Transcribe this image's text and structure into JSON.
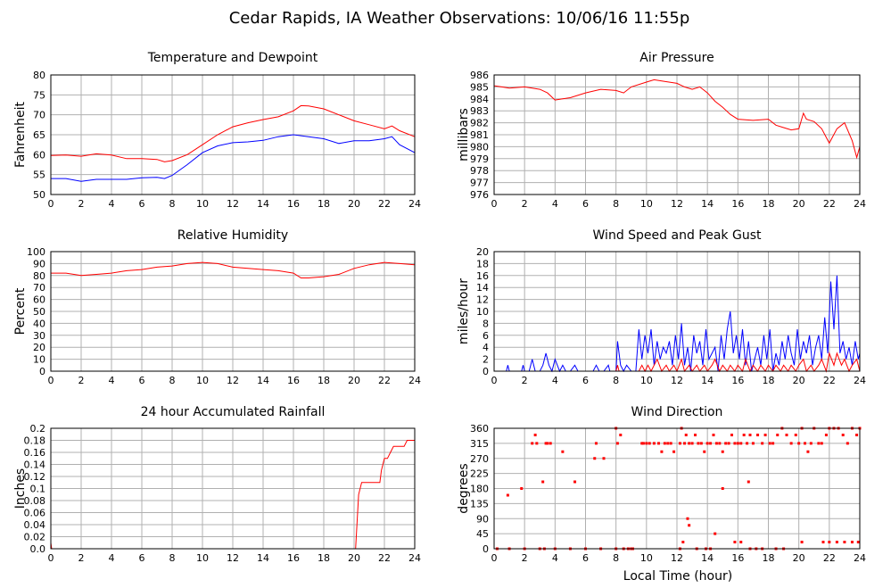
{
  "page_title": "Cedar Rapids, IA Weather Observations: 10/06/16 11:55p",
  "bottom_xlabel": "Local Time (hour)",
  "colors": {
    "red": "#ff0000",
    "blue": "#0000ff",
    "grid": "#b0b0b0",
    "axis": "#000000"
  },
  "chart_data": [
    {
      "id": "temp",
      "type": "line",
      "title": "Temperature and Dewpoint",
      "xlabel": "",
      "ylabel": "Fahrenheit",
      "xlim": [
        0,
        24
      ],
      "ylim": [
        50,
        80
      ],
      "xticks": [
        0,
        2,
        4,
        6,
        8,
        10,
        12,
        14,
        16,
        18,
        20,
        22,
        24
      ],
      "yticks": [
        50,
        55,
        60,
        65,
        70,
        75,
        80
      ],
      "grid": true,
      "series": [
        {
          "color": "#ff0000",
          "x": [
            0,
            1,
            2,
            3,
            4,
            5,
            6,
            7,
            7.5,
            8,
            9,
            10,
            11,
            12,
            13,
            14,
            15,
            16,
            16.5,
            17,
            18,
            19,
            20,
            21,
            22,
            22.5,
            23,
            24
          ],
          "y": [
            59.8,
            59.9,
            59.6,
            60.2,
            59.9,
            59.0,
            59.0,
            58.8,
            58.2,
            58.5,
            60.0,
            62.5,
            65.0,
            67.0,
            68.0,
            68.8,
            69.5,
            71.0,
            72.3,
            72.2,
            71.5,
            70.0,
            68.5,
            67.5,
            66.5,
            67.2,
            66.0,
            64.5
          ]
        },
        {
          "color": "#0000ff",
          "x": [
            0,
            1,
            2,
            3,
            4,
            5,
            6,
            7,
            7.5,
            8,
            9,
            10,
            11,
            12,
            13,
            14,
            15,
            16,
            17,
            18,
            19,
            20,
            21,
            22,
            22.5,
            23,
            24
          ],
          "y": [
            54.0,
            54.0,
            53.3,
            53.8,
            53.8,
            53.8,
            54.2,
            54.3,
            54.0,
            54.8,
            57.5,
            60.5,
            62.2,
            63.0,
            63.2,
            63.6,
            64.5,
            65.0,
            64.5,
            64.0,
            62.8,
            63.5,
            63.5,
            64.0,
            64.5,
            62.5,
            60.5
          ]
        }
      ]
    },
    {
      "id": "pressure",
      "type": "line",
      "title": "Air Pressure",
      "xlabel": "",
      "ylabel": "millibars",
      "xlim": [
        0,
        24
      ],
      "ylim": [
        976,
        986
      ],
      "xticks": [
        0,
        2,
        4,
        6,
        8,
        10,
        12,
        14,
        16,
        18,
        20,
        22,
        24
      ],
      "yticks": [
        976,
        977,
        978,
        979,
        980,
        981,
        982,
        983,
        984,
        985,
        986
      ],
      "grid": true,
      "series": [
        {
          "color": "#ff0000",
          "x": [
            0,
            0.5,
            1,
            2,
            3,
            3.5,
            4,
            4.5,
            5,
            6,
            7,
            8,
            8.5,
            9,
            10,
            10.5,
            11,
            12,
            12.5,
            13,
            13.5,
            14,
            14.5,
            15,
            15.5,
            16,
            17,
            18,
            18.5,
            19,
            19.5,
            20,
            20.3,
            20.5,
            21,
            21.5,
            22,
            22.5,
            23,
            23.5,
            23.8,
            24
          ],
          "y": [
            985.1,
            985.0,
            984.9,
            985.0,
            984.8,
            984.5,
            983.9,
            984.0,
            984.1,
            984.5,
            984.8,
            984.7,
            984.5,
            985.0,
            985.4,
            985.6,
            985.5,
            985.3,
            985.0,
            984.8,
            985.0,
            984.5,
            983.8,
            983.3,
            982.7,
            982.3,
            982.2,
            982.3,
            981.8,
            981.6,
            981.4,
            981.5,
            982.8,
            982.3,
            982.1,
            981.5,
            980.3,
            981.5,
            982.0,
            980.5,
            979.1,
            980.0
          ]
        }
      ]
    },
    {
      "id": "humidity",
      "type": "line",
      "title": "Relative Humidity",
      "xlabel": "",
      "ylabel": "Percent",
      "xlim": [
        0,
        24
      ],
      "ylim": [
        0,
        100
      ],
      "xticks": [
        0,
        2,
        4,
        6,
        8,
        10,
        12,
        14,
        16,
        18,
        20,
        22,
        24
      ],
      "yticks": [
        0,
        10,
        20,
        30,
        40,
        50,
        60,
        70,
        80,
        90,
        100
      ],
      "grid": true,
      "series": [
        {
          "color": "#ff0000",
          "x": [
            0,
            1,
            2,
            3,
            4,
            5,
            6,
            7,
            8,
            9,
            10,
            11,
            12,
            13,
            14,
            15,
            16,
            16.5,
            17,
            18,
            19,
            20,
            21,
            22,
            23,
            24
          ],
          "y": [
            82,
            82,
            80,
            81,
            82,
            84,
            85,
            87,
            88,
            90,
            91,
            90,
            87,
            86,
            85,
            84,
            82,
            78,
            78,
            79,
            81,
            86,
            89,
            91,
            90,
            89
          ]
        }
      ]
    },
    {
      "id": "wind",
      "type": "line",
      "title": "Wind Speed and Peak Gust",
      "xlabel": "",
      "ylabel": "miles/hour",
      "xlim": [
        0,
        24
      ],
      "ylim": [
        0,
        20
      ],
      "xticks": [
        0,
        2,
        4,
        6,
        8,
        10,
        12,
        14,
        16,
        18,
        20,
        22,
        24
      ],
      "yticks": [
        0,
        2,
        4,
        6,
        8,
        10,
        12,
        14,
        16,
        18,
        20
      ],
      "grid": true,
      "series": [
        {
          "color": "#0000ff",
          "x": [
            0,
            0.8,
            0.9,
            1.0,
            1.8,
            1.9,
            2.0,
            2.3,
            2.5,
            2.7,
            3.0,
            3.2,
            3.4,
            3.6,
            3.8,
            4.0,
            4.3,
            4.5,
            4.7,
            5.0,
            5.3,
            5.5,
            5.7,
            6.0,
            6.5,
            6.7,
            6.9,
            7.2,
            7.5,
            7.6,
            7.8,
            8.0,
            8.1,
            8.3,
            8.5,
            8.7,
            9.0,
            9.3,
            9.5,
            9.7,
            9.9,
            10.1,
            10.3,
            10.5,
            10.7,
            10.9,
            11.1,
            11.3,
            11.5,
            11.7,
            11.9,
            12.1,
            12.3,
            12.5,
            12.7,
            12.9,
            13.1,
            13.3,
            13.5,
            13.7,
            13.9,
            14.1,
            14.3,
            14.5,
            14.7,
            14.9,
            15.1,
            15.3,
            15.5,
            15.7,
            15.9,
            16.1,
            16.3,
            16.5,
            16.7,
            16.9,
            17.1,
            17.3,
            17.5,
            17.7,
            17.9,
            18.1,
            18.3,
            18.5,
            18.7,
            18.9,
            19.1,
            19.3,
            19.5,
            19.7,
            19.9,
            20.1,
            20.3,
            20.5,
            20.7,
            20.9,
            21.1,
            21.3,
            21.5,
            21.7,
            21.9,
            22.1,
            22.3,
            22.5,
            22.7,
            22.9,
            23.1,
            23.3,
            23.5,
            23.7,
            23.9,
            24
          ],
          "y": [
            0,
            0,
            1,
            0,
            0,
            1,
            0,
            0,
            2,
            0,
            0,
            1,
            3,
            1,
            0,
            2,
            0,
            1,
            0,
            0,
            1,
            0,
            0,
            0,
            0,
            1,
            0,
            0,
            1,
            0,
            0,
            0,
            5,
            1,
            0,
            1,
            0,
            0,
            7,
            2,
            6,
            3,
            7,
            1,
            5,
            2,
            4,
            3,
            5,
            1,
            6,
            2,
            8,
            1,
            4,
            0,
            6,
            3,
            5,
            1,
            7,
            2,
            3,
            4,
            0,
            6,
            2,
            7,
            10,
            3,
            6,
            2,
            7,
            1,
            5,
            0,
            2,
            4,
            1,
            6,
            2,
            7,
            0,
            3,
            1,
            5,
            2,
            6,
            3,
            1,
            7,
            2,
            5,
            3,
            6,
            1,
            4,
            6,
            2,
            9,
            3,
            15,
            7,
            16,
            3,
            5,
            2,
            4,
            1,
            5,
            2,
            3
          ]
        },
        {
          "color": "#ff0000",
          "x": [
            0,
            8.0,
            8.1,
            8.2,
            9.5,
            9.7,
            9.9,
            10.1,
            10.3,
            10.5,
            10.7,
            11.0,
            11.3,
            11.5,
            11.8,
            12.0,
            12.3,
            12.5,
            12.8,
            13.0,
            13.3,
            13.5,
            13.8,
            14.0,
            14.3,
            14.5,
            14.8,
            15.0,
            15.3,
            15.5,
            15.8,
            16.0,
            16.3,
            16.5,
            16.8,
            17.0,
            17.3,
            17.5,
            17.8,
            18.0,
            18.3,
            18.5,
            18.8,
            19.0,
            19.3,
            19.5,
            19.8,
            20.0,
            20.3,
            20.5,
            20.8,
            21.0,
            21.3,
            21.5,
            21.8,
            22.0,
            22.3,
            22.5,
            22.8,
            23.0,
            23.3,
            23.5,
            23.8,
            24
          ],
          "y": [
            0,
            0,
            1,
            0,
            0,
            1,
            0,
            1,
            0,
            1,
            2,
            0,
            1,
            0,
            1,
            0,
            2,
            0,
            1,
            0,
            1,
            0,
            1,
            0,
            1,
            2,
            0,
            1,
            0,
            1,
            0,
            1,
            0,
            2,
            0,
            1,
            0,
            1,
            0,
            1,
            0,
            1,
            0,
            1,
            0,
            1,
            0,
            1,
            2,
            0,
            1,
            0,
            1,
            2,
            0,
            3,
            1,
            3,
            1,
            2,
            0,
            1,
            2,
            0
          ]
        }
      ]
    },
    {
      "id": "rain",
      "type": "line",
      "title": "24 hour Accumulated Rainfall",
      "xlabel": "",
      "ylabel": "Inches",
      "xlim": [
        0,
        24
      ],
      "ylim": [
        0,
        0.2
      ],
      "xticks": [
        0,
        2,
        4,
        6,
        8,
        10,
        12,
        14,
        16,
        18,
        20,
        22,
        24
      ],
      "yticks": [
        0.0,
        0.02,
        0.04,
        0.06,
        0.08,
        0.1,
        0.12,
        0.14,
        0.16,
        0.18,
        0.2
      ],
      "ytick_labels": [
        "0.0",
        "0.02",
        "0.04",
        "0.06",
        "0.08",
        "0.1",
        "0.12",
        "0.14",
        "0.16",
        "0.18",
        "0.2"
      ],
      "grid": true,
      "series": [
        {
          "color": "#ff0000",
          "x": [
            0,
            0.05,
            0.1,
            20.0,
            20.1,
            20.3,
            20.5,
            21.7,
            21.8,
            22.0,
            22.2,
            22.4,
            22.6,
            22.8,
            23.0,
            23.3,
            23.5,
            24
          ],
          "y": [
            0.01,
            0.0,
            0.0,
            0.0,
            0.0,
            0.09,
            0.11,
            0.11,
            0.13,
            0.15,
            0.15,
            0.16,
            0.17,
            0.17,
            0.17,
            0.17,
            0.18,
            0.18
          ]
        }
      ]
    },
    {
      "id": "winddir",
      "type": "scatter",
      "title": "Wind Direction",
      "xlabel": "Local Time (hour)",
      "ylabel": "degrees",
      "xlim": [
        0,
        24
      ],
      "ylim": [
        0,
        360
      ],
      "xticks": [
        0,
        2,
        4,
        6,
        8,
        10,
        12,
        14,
        16,
        18,
        20,
        22,
        24
      ],
      "yticks": [
        0,
        45,
        90,
        135,
        180,
        225,
        270,
        315,
        360
      ],
      "grid": true,
      "series": [
        {
          "color": "#ff0000",
          "x": [
            0.9,
            1.8,
            2.5,
            2.7,
            2.8,
            3.2,
            3.4,
            3.5,
            3.7,
            4.5,
            5.3,
            6.6,
            6.7,
            7.2,
            8.0,
            8.1,
            8.3,
            9.7,
            9.8,
            10.0,
            10.2,
            10.5,
            10.8,
            11.0,
            11.2,
            11.4,
            11.6,
            11.8,
            12.2,
            12.3,
            12.5,
            12.6,
            12.8,
            13.0,
            13.2,
            13.4,
            13.6,
            13.8,
            14.0,
            14.2,
            14.4,
            14.6,
            14.8,
            15.0,
            15.2,
            15.4,
            15.6,
            15.8,
            16.0,
            16.2,
            16.4,
            16.6,
            16.8,
            17.0,
            17.3,
            17.6,
            17.8,
            18.1,
            18.3,
            18.6,
            18.9,
            19.2,
            19.5,
            19.8,
            20.0,
            20.2,
            20.4,
            20.6,
            20.8,
            21.0,
            21.3,
            21.5,
            21.8,
            22.0,
            22.3,
            22.6,
            22.9,
            23.2,
            23.5,
            23.8,
            24.0,
            12.7,
            12.8,
            12.4,
            13.9,
            14.2,
            14.5,
            15.0,
            15.8,
            16.2,
            19.0,
            20.2,
            21.6,
            22.0,
            22.5,
            23.0,
            23.5,
            23.9,
            16.7,
            12.2,
            9.0,
            8.5,
            13.3,
            3.3,
            0.2,
            1.0,
            2.0,
            3.0,
            4.0,
            5.0,
            6.0,
            7.0,
            8.0,
            8.8,
            9.1,
            16.8,
            17.2,
            17.6,
            18.5
          ],
          "y": [
            160,
            180,
            315,
            340,
            315,
            200,
            315,
            315,
            315,
            290,
            200,
            270,
            315,
            270,
            360,
            315,
            340,
            315,
            315,
            315,
            315,
            315,
            315,
            290,
            315,
            315,
            315,
            290,
            315,
            360,
            315,
            340,
            315,
            315,
            340,
            315,
            315,
            290,
            315,
            315,
            340,
            315,
            315,
            290,
            315,
            315,
            340,
            315,
            315,
            315,
            340,
            315,
            340,
            315,
            340,
            315,
            340,
            315,
            315,
            340,
            360,
            340,
            315,
            340,
            315,
            360,
            315,
            290,
            315,
            360,
            315,
            315,
            340,
            360,
            360,
            360,
            340,
            315,
            360,
            340,
            360,
            90,
            70,
            20,
            0,
            0,
            45,
            180,
            20,
            20,
            0,
            20,
            20,
            20,
            20,
            20,
            20,
            20,
            200,
            0,
            0,
            0,
            0,
            0,
            0,
            0,
            0,
            0,
            0,
            0,
            0,
            0,
            0,
            0,
            0,
            0,
            0,
            0,
            0
          ]
        }
      ]
    }
  ]
}
